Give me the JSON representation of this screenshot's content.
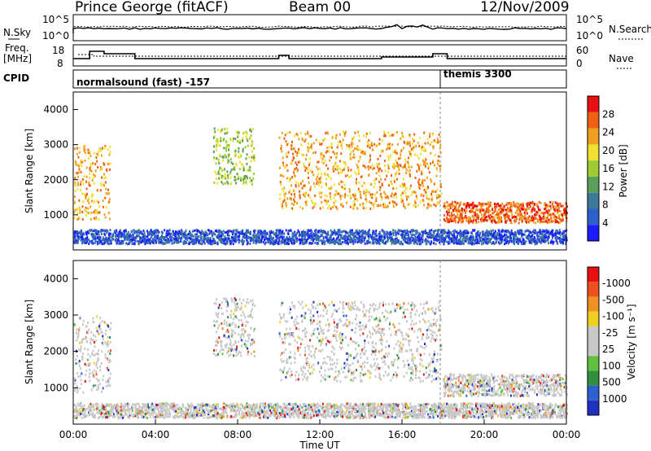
{
  "header": {
    "station": "Prince George (fitACF)",
    "beam": "Beam 00",
    "date": "12/Nov/2009"
  },
  "noise_panel": {
    "left_label": "N.Sky",
    "right_label": "N.Search",
    "left_ticks": [
      "10^5",
      "10^0"
    ],
    "right_ticks": [
      "10^5",
      "10^0"
    ]
  },
  "freq_panel": {
    "left_label_1": "Freq.",
    "left_label_2": "[MHz]",
    "right_label": "Nave",
    "left_ticks": [
      "18",
      "8"
    ],
    "right_ticks": [
      "60",
      "0"
    ]
  },
  "cpid_panel": {
    "label": "CPID",
    "programs": [
      {
        "name": "normalsound (fast) -157",
        "start_h": 0
      },
      {
        "name": "themis 3300",
        "start_h": 18.0
      }
    ]
  },
  "chart_data": [
    {
      "type": "heatmap",
      "quantity": "Power",
      "ylabel": "Slant Range [km]",
      "ylim": [
        0,
        4500
      ],
      "y_ticks": [
        "1000",
        "2000",
        "3000",
        "4000"
      ],
      "colorbar_label": "Power [dB]",
      "colorbar_ticks": [
        "4",
        "8",
        "12",
        "16",
        "20",
        "24",
        "28"
      ],
      "colorbar_colors": [
        "#1c1cff",
        "#2f5fc8",
        "#3c7a9a",
        "#5aa05a",
        "#9fcc33",
        "#f0e030",
        "#f0a020",
        "#f06010",
        "#e81010"
      ],
      "scatter_regions": [
        {
          "x_h": [
            0.0,
            1.8
          ],
          "range_km": [
            900,
            3000
          ],
          "level": "high"
        },
        {
          "x_h": [
            6.8,
            8.8
          ],
          "range_km": [
            1900,
            3500
          ],
          "level": "medium"
        },
        {
          "x_h": [
            10.0,
            17.9
          ],
          "range_km": [
            1200,
            3400
          ],
          "level": "high"
        },
        {
          "x_h": [
            18.0,
            24.0
          ],
          "range_km": [
            800,
            1400
          ],
          "level": "very high"
        },
        {
          "x_h": [
            0.0,
            24.0
          ],
          "range_km": [
            200,
            600
          ],
          "level": "low"
        }
      ]
    },
    {
      "type": "heatmap",
      "quantity": "Velocity",
      "ylabel": "Slant Range [km]",
      "ylim": [
        0,
        4500
      ],
      "y_ticks": [
        "1000",
        "2000",
        "3000",
        "4000"
      ],
      "colorbar_label": "Velocity [m s⁻¹]",
      "colorbar_ticks": [
        "1000",
        "500",
        "100",
        "25",
        "-25",
        "-100",
        "-500",
        "-1000"
      ],
      "colorbar_colors": [
        "#2030c0",
        "#3060d0",
        "#309040",
        "#60c040",
        "#c8c8c8",
        "#c8c8c8",
        "#f0d020",
        "#f09020",
        "#f05020",
        "#e81010"
      ],
      "x_ticks": [
        "00:00",
        "04:00",
        "08:00",
        "12:00",
        "16:00",
        "20:00",
        "00:00"
      ],
      "xlabel": "Time UT"
    }
  ]
}
